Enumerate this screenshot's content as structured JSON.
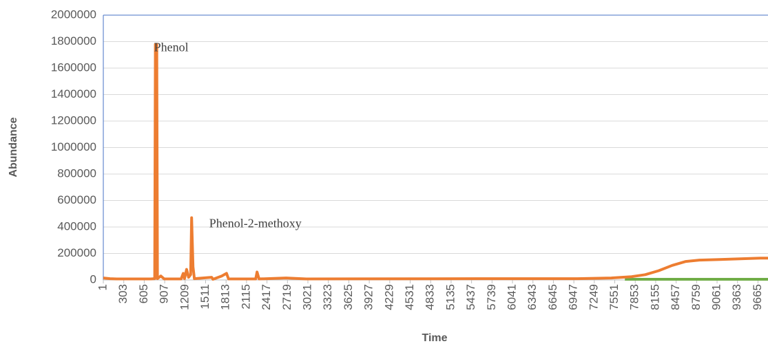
{
  "chart_data": {
    "type": "line",
    "x_label": "Time",
    "y_label": "Abundance",
    "annotations": [
      {
        "text": "Phenol",
        "x": 780,
        "y": 1780000
      },
      {
        "text": "Phenol-2-methoxy",
        "x": 1310,
        "y": 470000
      }
    ],
    "xlim": [
      1,
      9813
    ],
    "ylim": [
      0,
      2000000
    ],
    "xticks": [
      1,
      303,
      605,
      907,
      1209,
      1511,
      1813,
      2115,
      2417,
      2719,
      3021,
      3323,
      3625,
      3927,
      4229,
      4531,
      4833,
      5135,
      5437,
      5739,
      6041,
      6343,
      6645,
      6947,
      7249,
      7551,
      7853,
      8155,
      8457,
      8759,
      9061,
      9363,
      9665
    ],
    "yticks": [
      0,
      200000,
      400000,
      600000,
      800000,
      1000000,
      1200000,
      1400000,
      1600000,
      1800000,
      2000000
    ],
    "grid": true,
    "series": [
      {
        "color": "#ed7d31",
        "x": [
          1,
          100,
          200,
          700,
          760,
          770,
          790,
          800,
          850,
          900,
          1150,
          1180,
          1200,
          1230,
          1260,
          1290,
          1305,
          1325,
          1345,
          1600,
          1620,
          1750,
          1820,
          1850,
          2250,
          2270,
          2300,
          2700,
          3000,
          5500,
          7000,
          7500,
          7800,
          8000,
          8200,
          8400,
          8600,
          8800,
          9100,
          9400,
          9700,
          9813
        ],
        "values": [
          15000,
          10000,
          8000,
          8000,
          10000,
          1780000,
          1780000,
          10000,
          30000,
          8000,
          8000,
          50000,
          10000,
          80000,
          20000,
          40000,
          470000,
          100000,
          10000,
          20000,
          5000,
          30000,
          50000,
          8000,
          8000,
          60000,
          8000,
          15000,
          8000,
          10000,
          10000,
          15000,
          25000,
          40000,
          70000,
          110000,
          140000,
          150000,
          155000,
          160000,
          165000,
          165000
        ]
      },
      {
        "color": "#70ad47",
        "x": [
          7700,
          9813
        ],
        "values": [
          5000,
          5000
        ]
      }
    ]
  }
}
